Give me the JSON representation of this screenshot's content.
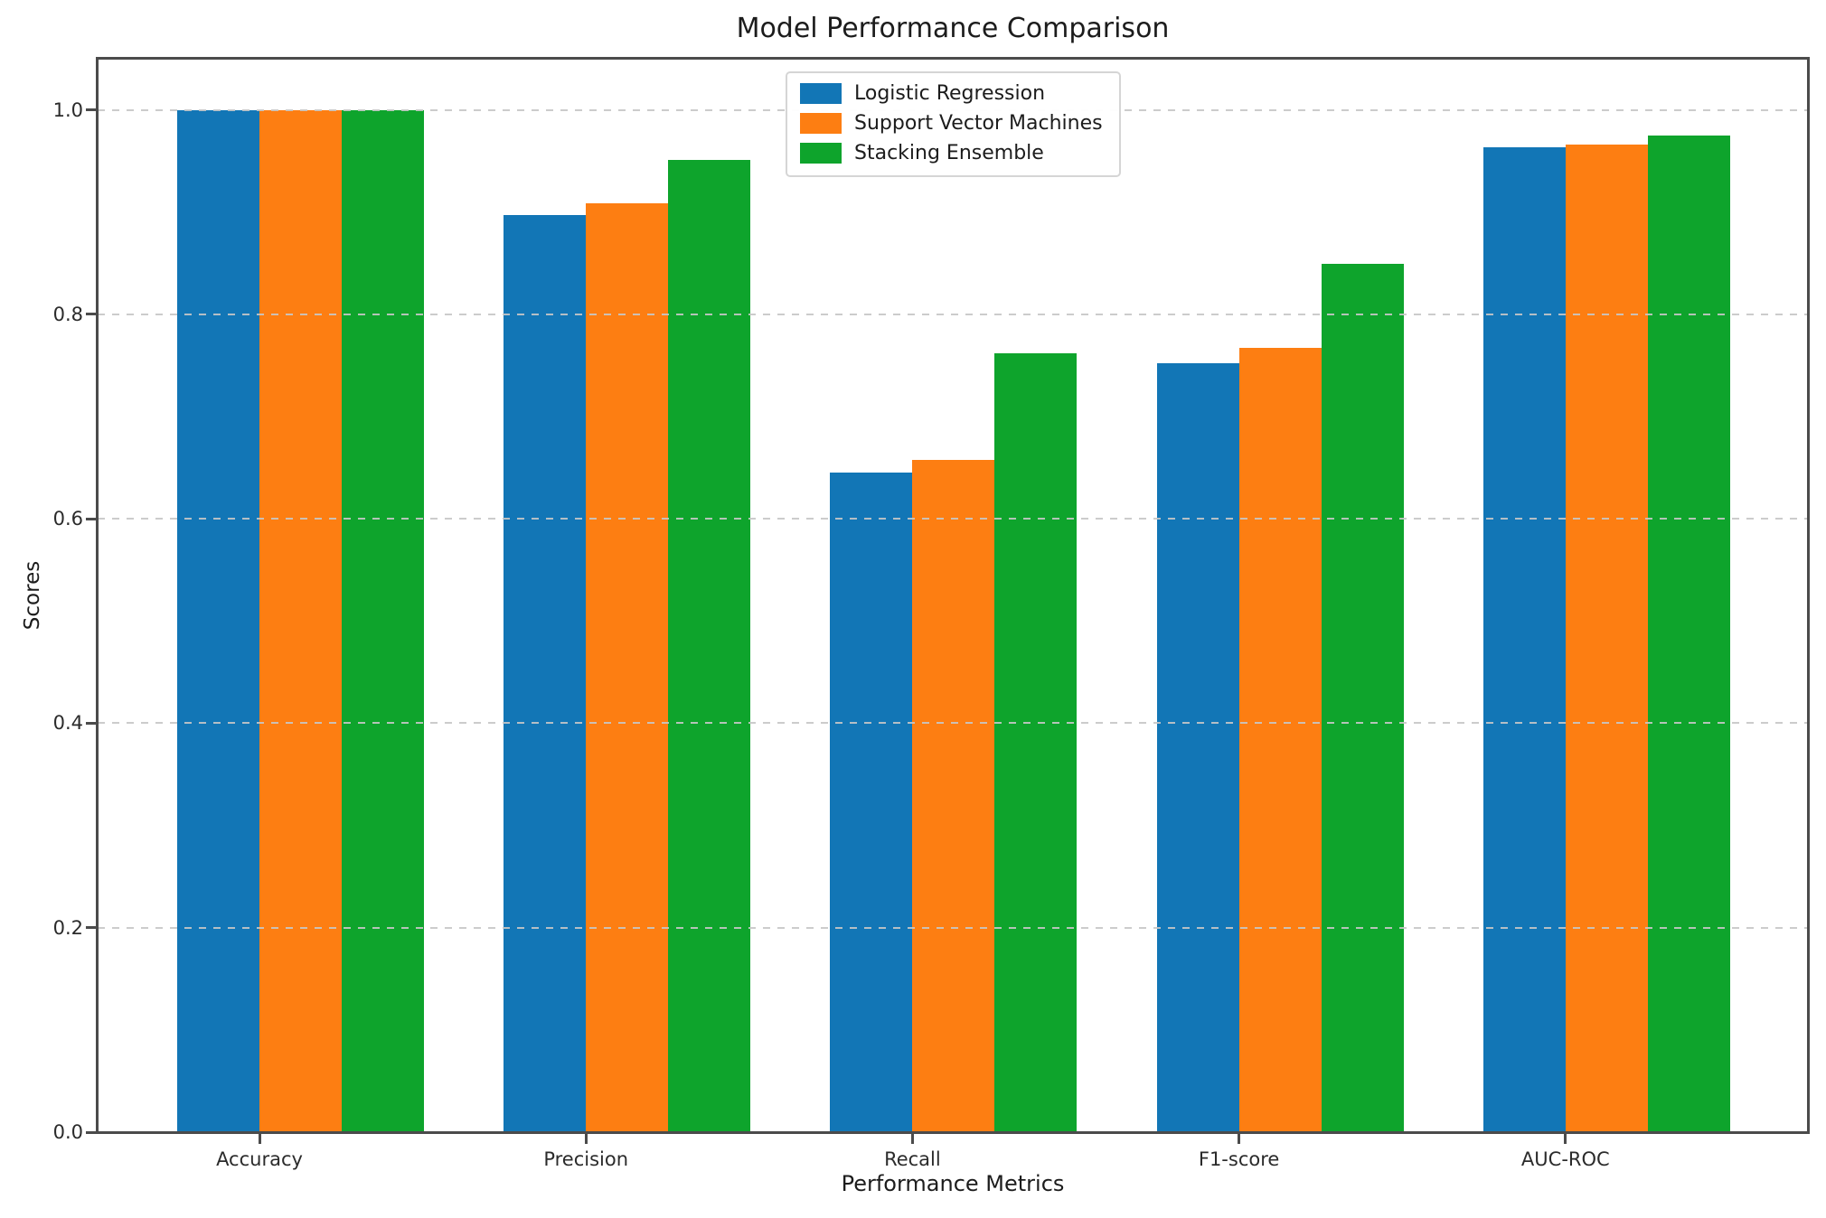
{
  "chart_data": {
    "type": "bar",
    "title": "Model Performance Comparison",
    "xlabel": "Performance Metrics",
    "ylabel": "Scores",
    "categories": [
      "Accuracy",
      "Precision",
      "Recall",
      "F1-score",
      "AUC-ROC"
    ],
    "series": [
      {
        "name": "Logistic Regression",
        "color": "#1276b6",
        "values": [
          1.0,
          0.897,
          0.645,
          0.752,
          0.963
        ]
      },
      {
        "name": "Support Vector Machines",
        "color": "#fd7e12",
        "values": [
          1.0,
          0.909,
          0.658,
          0.767,
          0.966
        ]
      },
      {
        "name": "Stacking Ensemble",
        "color": "#0ea42c",
        "values": [
          1.0,
          0.951,
          0.762,
          0.849,
          0.975
        ]
      }
    ],
    "ylim": [
      0,
      1.05
    ],
    "yticks": [
      "0.0",
      "0.2",
      "0.4",
      "0.6",
      "0.8",
      "1.0"
    ],
    "grid": "dashed-horizontal",
    "legend_position": "upper-center",
    "background_color": "#ffffff",
    "axis_color": "#4b4b4b"
  }
}
